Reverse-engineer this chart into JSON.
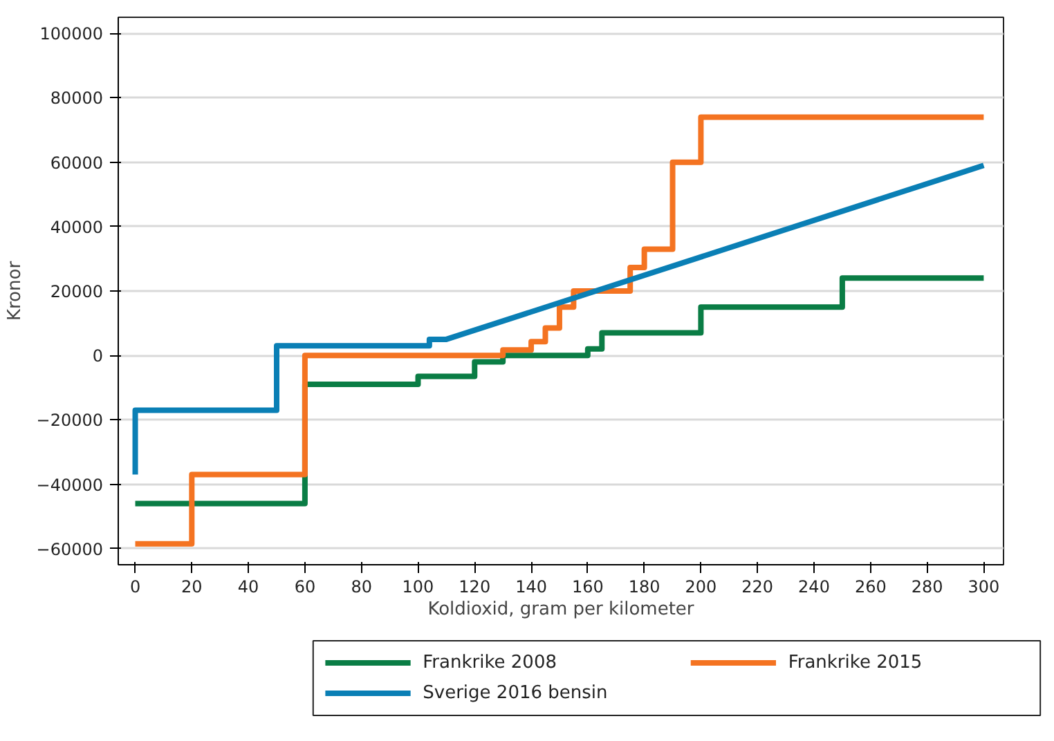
{
  "chart_data": {
    "type": "step",
    "xlabel": "Koldioxid, gram per kilometer",
    "ylabel": "Kronor",
    "xlim": [
      -6,
      307
    ],
    "ylim": [
      -65000,
      105000
    ],
    "xticks": [
      0,
      20,
      40,
      60,
      80,
      100,
      120,
      140,
      160,
      180,
      200,
      220,
      240,
      260,
      280,
      300
    ],
    "yticks": [
      {
        "value": -60000,
        "label": "−60000"
      },
      {
        "value": -40000,
        "label": "−40000"
      },
      {
        "value": -20000,
        "label": "−20000"
      },
      0,
      20000,
      40000,
      60000,
      80000,
      100000
    ],
    "grid": "y",
    "legend": "bottom",
    "line_style": "solid",
    "marker": "none",
    "series": [
      {
        "name": "Frankrike 2008",
        "color": "#0a7d45",
        "x": [
          0,
          60,
          100,
          120,
          130,
          160,
          165,
          200,
          250,
          300
        ],
        "values": [
          -46000,
          -9000,
          -6500,
          -2000,
          0,
          2000,
          7000,
          15000,
          24000,
          24000
        ]
      },
      {
        "name": "Frankrike 2015",
        "color": "#f47321",
        "x": [
          0,
          20,
          60,
          130,
          140,
          145,
          150,
          155,
          175,
          180,
          190,
          200,
          300
        ],
        "values": [
          -58500,
          -37000,
          0,
          1700,
          4300,
          8500,
          15000,
          20000,
          27300,
          33000,
          60000,
          74000,
          74000
        ]
      },
      {
        "name": "Sverige 2016 bensin",
        "type": "line",
        "color": "#0a7fb5",
        "x": [
          0,
          0,
          50,
          50,
          104,
          104,
          110,
          300
        ],
        "values": [
          -37000,
          -17000,
          -17000,
          3000,
          3000,
          5000,
          5000,
          59000
        ]
      }
    ]
  }
}
